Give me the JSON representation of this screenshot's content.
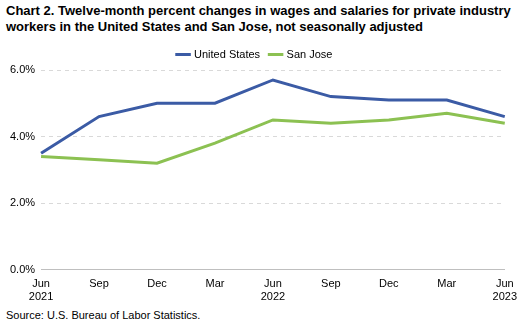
{
  "chart_data": {
    "type": "line",
    "title": "Chart 2. Twelve-month percent changes in wages and salaries for private industry workers in the United States and San Jose, not seasonally adjusted",
    "source": "Source: U.S. Bureau of Labor Statistics.",
    "categories": [
      "Jun 2021",
      "Sep",
      "Dec",
      "Mar",
      "Jun 2022",
      "Sep",
      "Dec",
      "Mar",
      "Jun 2023"
    ],
    "series": [
      {
        "name": "United States",
        "color": "#3b5ba5",
        "values": [
          3.5,
          4.6,
          5.0,
          5.0,
          5.7,
          5.2,
          5.1,
          5.1,
          4.6
        ]
      },
      {
        "name": "San Jose",
        "color": "#8cc152",
        "values": [
          3.4,
          3.3,
          3.2,
          3.8,
          4.5,
          4.4,
          4.5,
          4.7,
          4.4
        ]
      }
    ],
    "ylim": [
      0,
      6
    ],
    "yticks": [
      {
        "value": 0,
        "label": "0.0%"
      },
      {
        "value": 2,
        "label": "2.0%"
      },
      {
        "value": 4,
        "label": "4.0%"
      },
      {
        "value": 6,
        "label": "6.0%"
      }
    ],
    "grid": true,
    "legend": "top"
  }
}
